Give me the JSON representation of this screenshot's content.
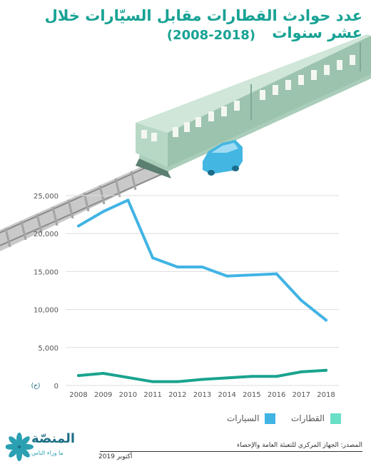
{
  "title": {
    "line1": "عدد حوادث القطارات مقابل السيّارات خلال عشر سنوات",
    "line2": "(2008-2018)"
  },
  "colors": {
    "title": "#17a294",
    "cars": "#41b4e4",
    "trains": "#1aa38f",
    "trains_legend": "#69dfc6",
    "grid": "#dddddd",
    "axis_text": "#555555"
  },
  "legend": {
    "cars": "السيارات",
    "trains": "القطارات"
  },
  "unit_label": "(ح)",
  "source": "المصدر: الجهاز المركزي للتعبئة العامة والإحصاء",
  "date": "أكتوبر 2019",
  "logo": {
    "name": "المنصّة",
    "tagline": "ما وراء الناس"
  },
  "chart_data": {
    "type": "line",
    "title": "عدد حوادث القطارات مقابل السيّارات خلال عشر سنوات",
    "subtitle": "(2008-2018)",
    "xlabel": "",
    "ylabel": "",
    "x": [
      2008,
      2009,
      2010,
      2011,
      2012,
      2013,
      2014,
      2015,
      2016,
      2017,
      2018
    ],
    "y_ticks": [
      "0",
      "5,000",
      "10,000",
      "15,000",
      "20,000",
      "25,000"
    ],
    "ylim": [
      0,
      25000
    ],
    "grid": true,
    "legend_position": "bottom",
    "series": [
      {
        "name": "السيارات",
        "values": [
          21000,
          22900,
          24400,
          16800,
          15600,
          15600,
          14400,
          14550,
          14700,
          11200,
          8600
        ]
      },
      {
        "name": "القطارات",
        "values": [
          1300,
          1600,
          1050,
          500,
          500,
          800,
          1000,
          1200,
          1200,
          1800,
          2000
        ]
      }
    ]
  }
}
